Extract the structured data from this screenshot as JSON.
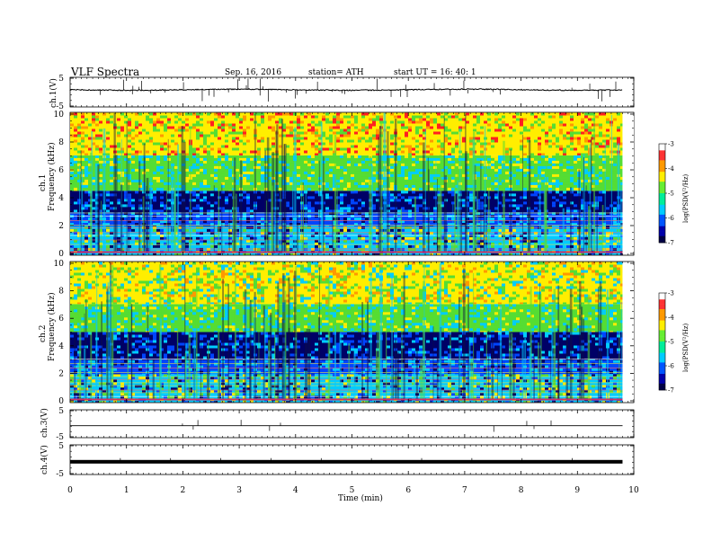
{
  "header": {
    "title": "VLF  Spectra",
    "date": "Sep. 16, 2016",
    "station": "station= ATH",
    "start": "start  UT  =    16: 40: 1"
  },
  "colorbar": {
    "label": "log(PSD(V²/Hz)",
    "ticks": [
      "-3",
      "-4",
      "-5",
      "-6",
      "-7"
    ],
    "colors": [
      "#ff2020",
      "#ff9900",
      "#ffee00",
      "#55dd33",
      "#00ccff",
      "#0044ff",
      "#000066"
    ]
  },
  "chart_data": {
    "type": "spectrogram",
    "xlabel": "Time  (min)",
    "x_ticks": [
      "0",
      "1",
      "2",
      "3",
      "4",
      "5",
      "6",
      "7",
      "8",
      "9",
      "10"
    ],
    "xlim": [
      0,
      10
    ],
    "data_end_min": 9.8,
    "panels": [
      {
        "kind": "waveform",
        "ylabel": "ch.1(V)",
        "y_ticks": [
          "5",
          "-5"
        ],
        "ylim": [
          -5,
          5
        ],
        "baseline_v": 0.8
      },
      {
        "kind": "spectrogram",
        "ylabel_channel": "ch.1",
        "ylabel": "Frequency  (kHz)",
        "y_ticks": [
          "10",
          "8",
          "6",
          "4",
          "2",
          "0"
        ],
        "ylim_khz": [
          0,
          10
        ],
        "psd_range_log": [
          -7,
          -3
        ],
        "bands_khz": [
          {
            "from": 0,
            "to": 2,
            "level": "cyan-striped"
          },
          {
            "from": 2,
            "to": 3,
            "level": "blue"
          },
          {
            "from": 3,
            "to": 4.5,
            "level": "deep-blue"
          },
          {
            "from": 4.5,
            "to": 7,
            "level": "green-cyan"
          },
          {
            "from": 7,
            "to": 10,
            "level": "yellow-red"
          }
        ]
      },
      {
        "kind": "spectrogram",
        "ylabel_channel": "ch.2",
        "ylabel": "Frequency  (kHz)",
        "y_ticks": [
          "10",
          "8",
          "6",
          "4",
          "2",
          "0"
        ],
        "ylim_khz": [
          0,
          10
        ],
        "psd_range_log": [
          -7,
          -3
        ],
        "bands_khz": [
          {
            "from": 0,
            "to": 2,
            "level": "cyan-striped"
          },
          {
            "from": 2,
            "to": 3,
            "level": "blue"
          },
          {
            "from": 3,
            "to": 5,
            "level": "deep-blue"
          },
          {
            "from": 5,
            "to": 7,
            "level": "green-cyan"
          },
          {
            "from": 7,
            "to": 10,
            "level": "yellow-green"
          }
        ]
      },
      {
        "kind": "waveform",
        "ylabel": "ch.3(V)",
        "y_ticks": [
          "5",
          "-5"
        ],
        "ylim": [
          -5,
          5
        ],
        "baseline_v": -0.7
      },
      {
        "kind": "waveform",
        "ylabel": "ch.4(V)",
        "y_ticks": [
          "5",
          "-5"
        ],
        "ylim": [
          -5,
          5
        ],
        "baseline_v": -0.7
      }
    ]
  }
}
